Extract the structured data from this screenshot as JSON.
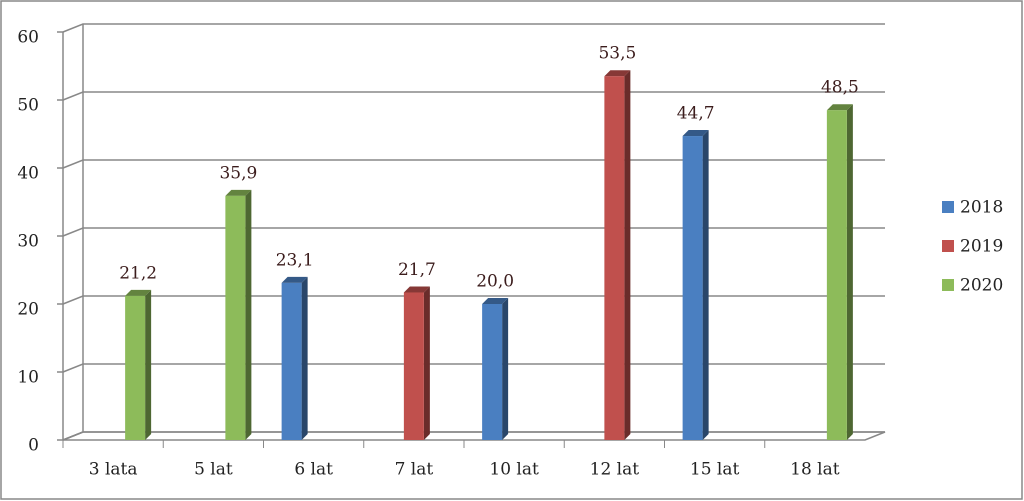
{
  "chart_data": {
    "type": "bar3d",
    "categories": [
      "3 lata",
      "5 lat",
      "6 lat",
      "7 lat",
      "10 lat",
      "12 lat",
      "15 lat",
      "18 lat"
    ],
    "series": [
      {
        "name": "2018",
        "color": "#4a7fc1",
        "values": [
          null,
          null,
          23.1,
          null,
          20.0,
          null,
          44.7,
          null
        ],
        "value_labels": [
          null,
          null,
          "23,1",
          null,
          "20,0",
          null,
          "44,7",
          null
        ]
      },
      {
        "name": "2019",
        "color": "#c0504d",
        "values": [
          null,
          null,
          null,
          21.7,
          null,
          53.5,
          null,
          null
        ],
        "value_labels": [
          null,
          null,
          null,
          "21,7",
          null,
          "53,5",
          null,
          null
        ]
      },
      {
        "name": "2020",
        "color": "#8dbb5a",
        "values": [
          21.2,
          35.9,
          null,
          null,
          null,
          null,
          null,
          48.5
        ],
        "value_labels": [
          "21,2",
          "35,9",
          null,
          null,
          null,
          null,
          null,
          "48,5"
        ]
      }
    ],
    "ylim": [
      0,
      60
    ],
    "yticks": [
      0,
      10,
      20,
      30,
      40,
      50,
      60
    ],
    "grid": true,
    "legend": "right"
  }
}
